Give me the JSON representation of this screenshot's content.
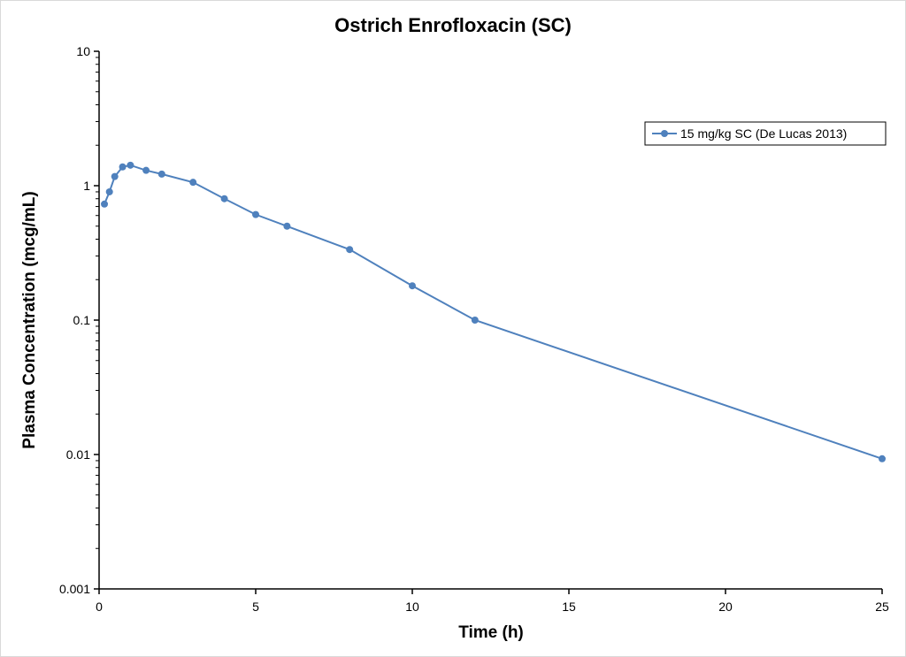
{
  "chart_data": {
    "type": "line",
    "title": "Ostrich Enrofloxacin (SC)",
    "xlabel": "Time (h)",
    "ylabel": "Plasma Concentration (mcg/mL)",
    "xlim": [
      0,
      25
    ],
    "ylim": [
      0.001,
      10
    ],
    "yscale": "log",
    "x_ticks": [
      0,
      5,
      10,
      15,
      20,
      25
    ],
    "x_tick_labels": [
      "0",
      "5",
      "10",
      "15",
      "20",
      "25"
    ],
    "y_ticks": [
      0.001,
      0.01,
      0.1,
      1,
      10
    ],
    "y_tick_labels": [
      "0.001",
      "0.01",
      "0.1",
      "1",
      "10"
    ],
    "grid": false,
    "legend_position": "top-right",
    "series": [
      {
        "name": "15 mg/kg SC (De Lucas 2013)",
        "color": "#4f81bd",
        "x": [
          0.17,
          0.33,
          0.5,
          0.75,
          1,
          1.5,
          2,
          3,
          4,
          5,
          6,
          8,
          10,
          12,
          25
        ],
        "y": [
          0.73,
          0.9,
          1.17,
          1.38,
          1.42,
          1.3,
          1.22,
          1.06,
          0.8,
          0.61,
          0.5,
          0.335,
          0.18,
          0.1,
          0.0093
        ]
      }
    ]
  }
}
